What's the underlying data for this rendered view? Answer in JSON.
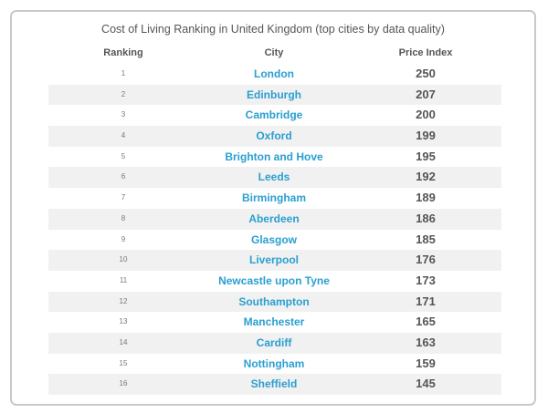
{
  "title": "Cost of Living Ranking in United Kingdom (top cities by data quality)",
  "columns": {
    "ranking": "Ranking",
    "city": "City",
    "price_index": "Price Index"
  },
  "rows": [
    {
      "rank": "1",
      "city": "London",
      "price": "250"
    },
    {
      "rank": "2",
      "city": "Edinburgh",
      "price": "207"
    },
    {
      "rank": "3",
      "city": "Cambridge",
      "price": "200"
    },
    {
      "rank": "4",
      "city": "Oxford",
      "price": "199"
    },
    {
      "rank": "5",
      "city": "Brighton and Hove",
      "price": "195"
    },
    {
      "rank": "6",
      "city": "Leeds",
      "price": "192"
    },
    {
      "rank": "7",
      "city": "Birmingham",
      "price": "189"
    },
    {
      "rank": "8",
      "city": "Aberdeen",
      "price": "186"
    },
    {
      "rank": "9",
      "city": "Glasgow",
      "price": "185"
    },
    {
      "rank": "10",
      "city": "Liverpool",
      "price": "176"
    },
    {
      "rank": "11",
      "city": "Newcastle upon Tyne",
      "price": "173"
    },
    {
      "rank": "12",
      "city": "Southampton",
      "price": "171"
    },
    {
      "rank": "13",
      "city": "Manchester",
      "price": "165"
    },
    {
      "rank": "14",
      "city": "Cardiff",
      "price": "163"
    },
    {
      "rank": "15",
      "city": "Nottingham",
      "price": "159"
    },
    {
      "rank": "16",
      "city": "Sheffield",
      "price": "145"
    }
  ]
}
